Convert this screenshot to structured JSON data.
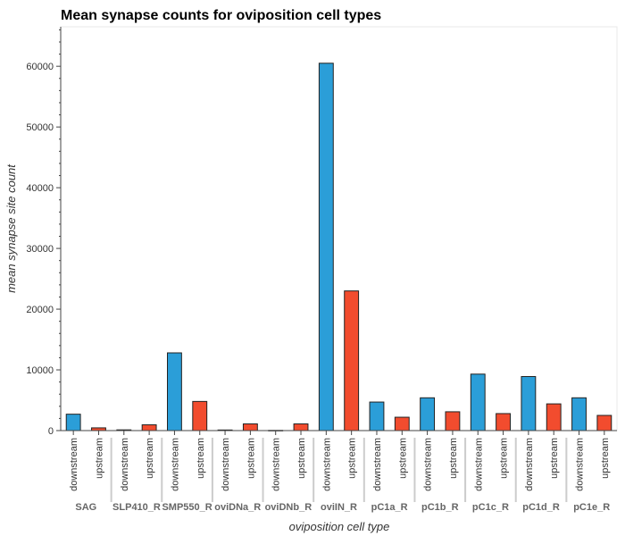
{
  "chart_data": {
    "type": "bar",
    "title": "Mean synapse counts for oviposition cell types",
    "xlabel": "oviposition cell type",
    "ylabel": "mean synapse site count",
    "categories": [
      "SAG",
      "SLP410_R",
      "SMP550_R",
      "oviDNa_R",
      "oviDNb_R",
      "oviIN_R",
      "pC1a_R",
      "pC1b_R",
      "pC1c_R",
      "pC1d_R",
      "pC1e_R"
    ],
    "subcategories": [
      "downstream",
      "upstream"
    ],
    "series": [
      {
        "name": "downstream",
        "color": "#2b9ed8",
        "values": [
          2700,
          120,
          12800,
          100,
          30,
          60500,
          4700,
          5400,
          9300,
          8900,
          5400
        ]
      },
      {
        "name": "upstream",
        "color": "#f24c2e",
        "values": [
          450,
          950,
          4800,
          1100,
          1100,
          23000,
          2200,
          3100,
          2800,
          4400,
          2500
        ]
      }
    ],
    "yticks": [
      0,
      10000,
      20000,
      30000,
      40000,
      50000,
      60000
    ],
    "ylim": [
      0,
      66500
    ],
    "grid": false,
    "legend": "none"
  }
}
